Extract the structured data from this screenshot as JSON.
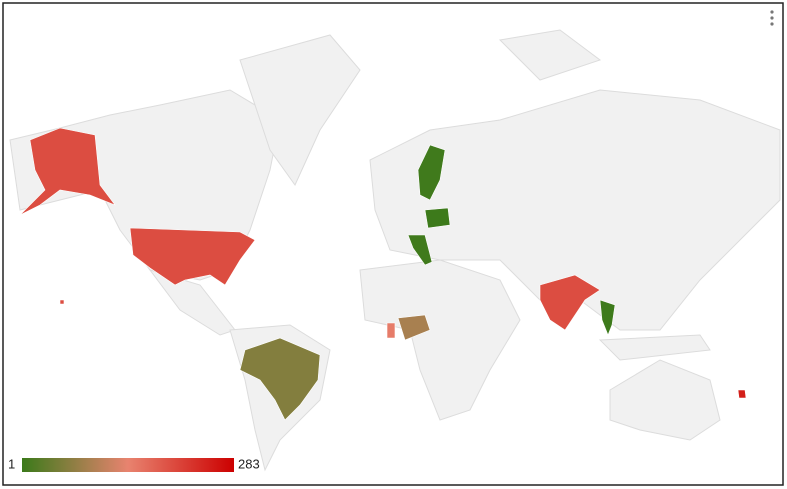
{
  "chart_data": {
    "type": "geo",
    "color_axis": {
      "min": 1,
      "max": 283,
      "colors": [
        "#3b7a1a",
        "#e8836f",
        "#cc0000"
      ]
    },
    "values": [
      200,
      200,
      60,
      5,
      3,
      5,
      90,
      150,
      200,
      3,
      250
    ]
  }
}
